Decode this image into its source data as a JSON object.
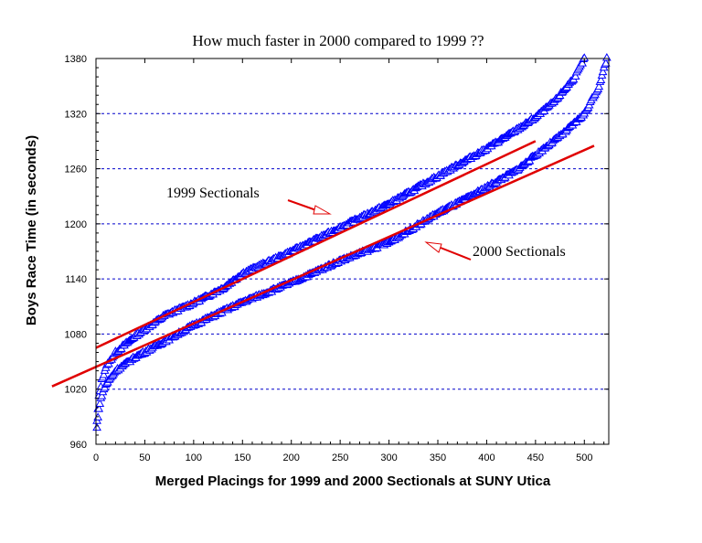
{
  "chart_data": {
    "type": "scatter",
    "title": "How much faster in 2000 compared to 1999 ??",
    "xlabel": "Merged Placings for 1999 and 2000 Sectionals at SUNY Utica",
    "ylabel": "Boys Race Time (in seconds)",
    "xlim": [
      0,
      525
    ],
    "ylim": [
      960,
      1380
    ],
    "xticks": [
      0,
      50,
      100,
      150,
      200,
      250,
      300,
      350,
      400,
      450,
      500
    ],
    "yticks": [
      960,
      1020,
      1080,
      1140,
      1200,
      1260,
      1320,
      1380
    ],
    "grid": "horizontal dashed",
    "marker": "triangle",
    "marker_color": "#0000ff",
    "trend_color": "#e00000",
    "series": [
      {
        "name": "1999 Sectionals",
        "profile": [
          [
            1,
            985
          ],
          [
            3,
            1012
          ],
          [
            6,
            1030
          ],
          [
            10,
            1044
          ],
          [
            20,
            1060
          ],
          [
            40,
            1078
          ],
          [
            70,
            1100
          ],
          [
            100,
            1114
          ],
          [
            130,
            1130
          ],
          [
            150,
            1146
          ],
          [
            200,
            1170
          ],
          [
            250,
            1196
          ],
          [
            300,
            1222
          ],
          [
            350,
            1252
          ],
          [
            380,
            1270
          ],
          [
            400,
            1282
          ],
          [
            430,
            1302
          ],
          [
            450,
            1316
          ],
          [
            470,
            1334
          ],
          [
            490,
            1360
          ],
          [
            500,
            1380
          ]
        ],
        "trendline": [
          [
            0,
            1065
          ],
          [
            450,
            1290
          ]
        ]
      },
      {
        "name": "2000 Sectionals",
        "profile": [
          [
            1,
            978
          ],
          [
            3,
            1000
          ],
          [
            6,
            1014
          ],
          [
            10,
            1025
          ],
          [
            20,
            1040
          ],
          [
            40,
            1055
          ],
          [
            70,
            1072
          ],
          [
            100,
            1090
          ],
          [
            130,
            1105
          ],
          [
            150,
            1115
          ],
          [
            200,
            1136
          ],
          [
            250,
            1160
          ],
          [
            300,
            1180
          ],
          [
            350,
            1212
          ],
          [
            380,
            1228
          ],
          [
            400,
            1240
          ],
          [
            430,
            1258
          ],
          [
            450,
            1275
          ],
          [
            480,
            1300
          ],
          [
            500,
            1320
          ],
          [
            515,
            1350
          ],
          [
            523,
            1380
          ]
        ],
        "trendline": [
          [
            -45,
            1023
          ],
          [
            510,
            1285
          ]
        ]
      }
    ]
  },
  "annotations": {
    "label_1999": "1999 Sectionals",
    "label_2000": "2000 Sectionals"
  }
}
